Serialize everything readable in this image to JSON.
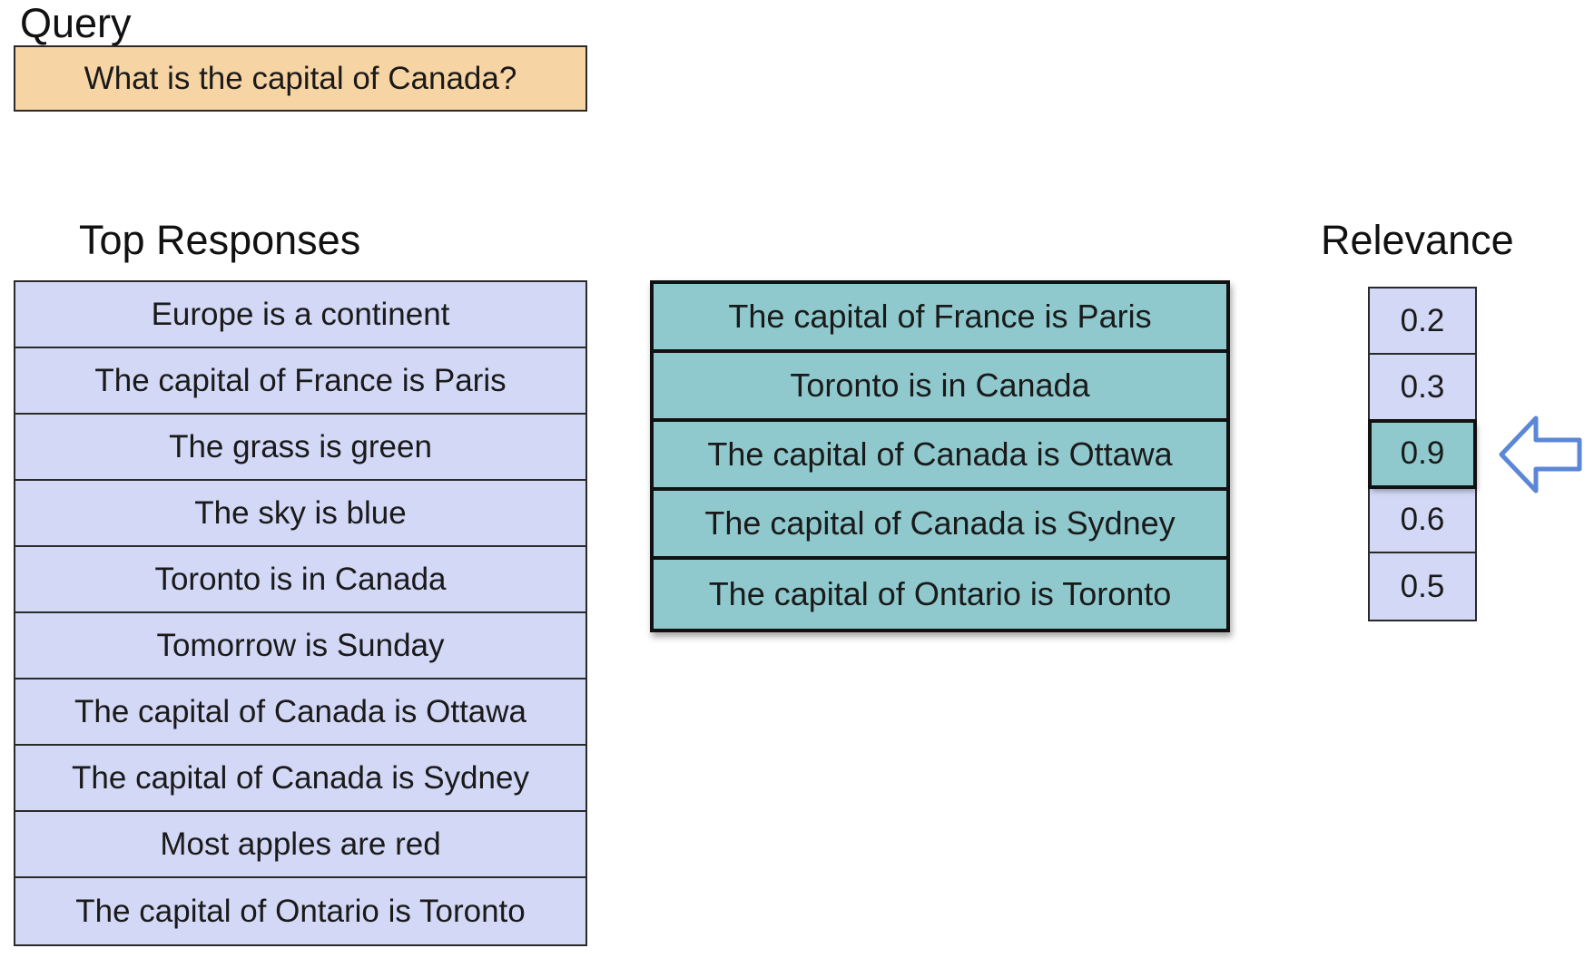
{
  "query": {
    "title": "Query",
    "text": "What is the capital of Canada?"
  },
  "top_responses": {
    "title": "Top Responses",
    "items": [
      "Europe is a continent",
      "The capital of France is Paris",
      "The grass is green",
      "The sky is blue",
      "Toronto is in Canada",
      "Tomorrow is Sunday",
      "The capital of Canada is Ottawa",
      "The capital of Canada is Sydney",
      "Most apples are red",
      "The capital of Ontario is Toronto"
    ]
  },
  "selected_responses": {
    "items": [
      "The capital of France is Paris",
      "Toronto is in Canada",
      "The capital of Canada is Ottawa",
      "The capital of Canada is Sydney",
      "The capital of Ontario is Toronto"
    ]
  },
  "relevance": {
    "title": "Relevance",
    "values": [
      "0.2",
      "0.3",
      "0.9",
      "0.6",
      "0.5"
    ],
    "highlighted_index": 2
  },
  "colors": {
    "query_fill": "#f7d4a3",
    "response_fill": "#d2d8f6",
    "selected_fill": "#8fc9cd",
    "arrow_stroke": "#5b87d6"
  },
  "icons": {
    "pointer": "arrow-left-outline-icon"
  }
}
